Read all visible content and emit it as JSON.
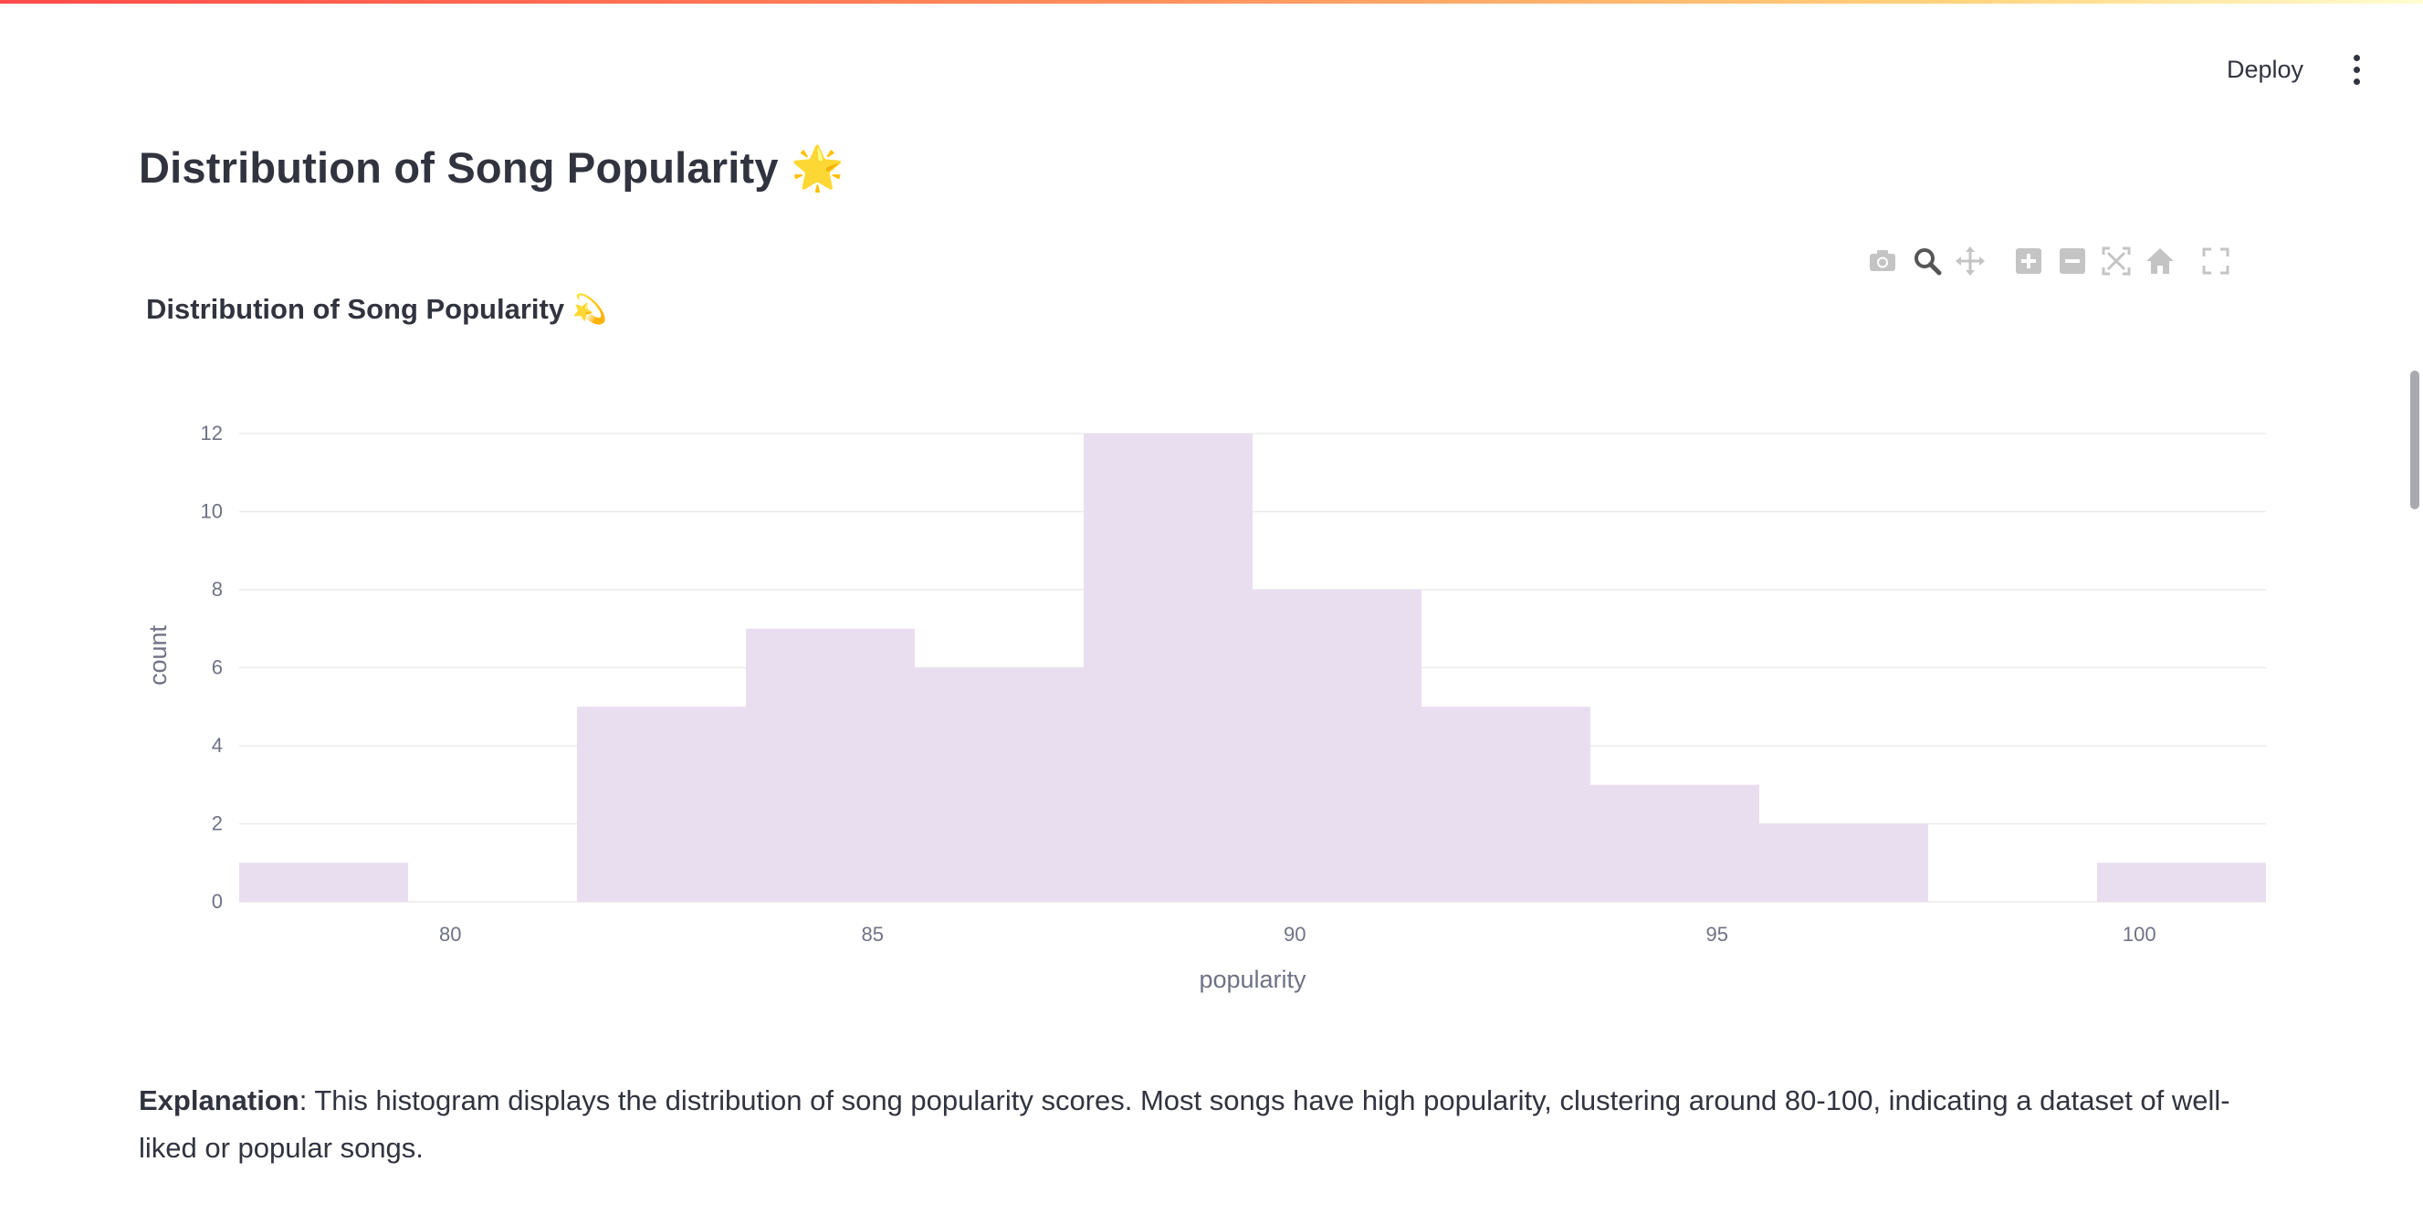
{
  "header": {
    "deploy_label": "Deploy",
    "menu_icon": "kebab-menu-icon"
  },
  "page": {
    "title": "Distribution of Song Popularity 🌟"
  },
  "modebar": {
    "icons": [
      "camera-icon",
      "zoom-icon",
      "pan-icon",
      "zoom-in-icon",
      "zoom-out-icon",
      "autoscale-icon",
      "reset-axes-icon",
      "fullscreen-icon"
    ],
    "active_color": "#555555",
    "inactive_color": "#c4c4c4"
  },
  "chart_data": {
    "type": "bar",
    "title": "Distribution of Song Popularity 💫",
    "xlabel": "popularity",
    "ylabel": "count",
    "bin_width": 2,
    "bins": [
      {
        "x0": 77.5,
        "x1": 79.5,
        "count": 1
      },
      {
        "x0": 79.5,
        "x1": 81.5,
        "count": 0
      },
      {
        "x0": 81.5,
        "x1": 83.5,
        "count": 5
      },
      {
        "x0": 83.5,
        "x1": 85.5,
        "count": 7
      },
      {
        "x0": 85.5,
        "x1": 87.5,
        "count": 6
      },
      {
        "x0": 87.5,
        "x1": 89.5,
        "count": 12
      },
      {
        "x0": 89.5,
        "x1": 91.5,
        "count": 8
      },
      {
        "x0": 91.5,
        "x1": 93.5,
        "count": 5
      },
      {
        "x0": 93.5,
        "x1": 95.5,
        "count": 3
      },
      {
        "x0": 95.5,
        "x1": 97.5,
        "count": 2
      },
      {
        "x0": 97.5,
        "x1": 99.5,
        "count": 0
      },
      {
        "x0": 99.5,
        "x1": 101.5,
        "count": 1
      }
    ],
    "xlim": [
      77.5,
      101.5
    ],
    "ylim": [
      0,
      12
    ],
    "xticks": [
      80,
      85,
      90,
      95,
      100
    ],
    "yticks": [
      0,
      2,
      4,
      6,
      8,
      10,
      12
    ],
    "grid": true,
    "bar_color": "#e9deef"
  },
  "explanation": {
    "label": "Explanation",
    "text": ": This histogram displays the distribution of song popularity scores. Most songs have high popularity, clustering around 80-100, indicating a dataset of well-liked or popular songs."
  }
}
